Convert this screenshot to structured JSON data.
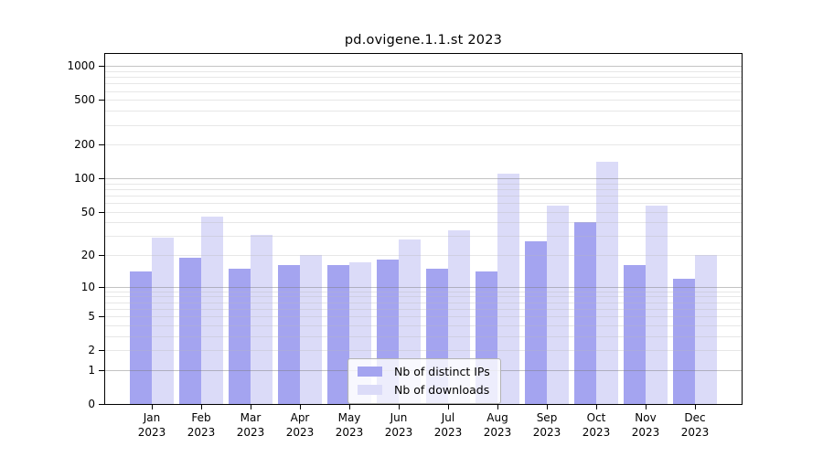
{
  "chart_data": {
    "type": "bar",
    "title": "pd.ovigene.1.1.st 2023",
    "categories": [
      "Jan",
      "Feb",
      "Mar",
      "Apr",
      "May",
      "Jun",
      "Jul",
      "Aug",
      "Sep",
      "Oct",
      "Nov",
      "Dec"
    ],
    "x_year_label": "2023",
    "series": [
      {
        "name": "Nb of distinct IPs",
        "color": "#a4a4f0",
        "values": [
          14,
          19,
          15,
          16,
          16,
          18,
          15,
          14,
          27,
          40,
          16,
          12
        ]
      },
      {
        "name": "Nb of downloads",
        "color": "#dbdbf8",
        "values": [
          29,
          45,
          31,
          20,
          17,
          28,
          34,
          110,
          57,
          140,
          57,
          20
        ]
      }
    ],
    "y_axis": {
      "scale": "log10(value+1)",
      "tick_values": [
        0,
        1,
        2,
        5,
        10,
        20,
        50,
        100,
        200,
        500,
        1000
      ],
      "tick_labels": [
        "0",
        "1",
        "2",
        "5",
        "10",
        "20",
        "50",
        "100",
        "200",
        "500",
        "1000"
      ],
      "range_max": 1280
    },
    "grid": {
      "major_lines": [
        1,
        10,
        100,
        1000
      ],
      "minor_lines": [
        2,
        3,
        4,
        5,
        6,
        7,
        8,
        9,
        20,
        30,
        40,
        50,
        60,
        70,
        80,
        90,
        200,
        300,
        400,
        500,
        600,
        700,
        800,
        900
      ]
    },
    "legend": {
      "position": "lower-center"
    }
  }
}
